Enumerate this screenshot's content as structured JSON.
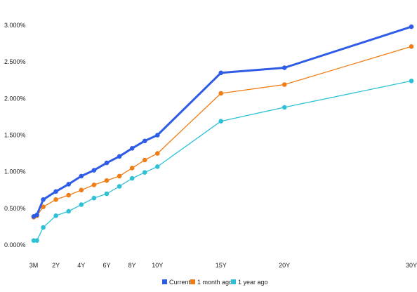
{
  "chart_data": {
    "type": "line",
    "title": "",
    "xlabel": "",
    "ylabel": "",
    "grid": false,
    "legend_position": "bottom",
    "x_ticks": [
      {
        "label": "3M",
        "value": 0.25
      },
      {
        "label": "2Y",
        "value": 2
      },
      {
        "label": "4Y",
        "value": 4
      },
      {
        "label": "6Y",
        "value": 6
      },
      {
        "label": "8Y",
        "value": 8
      },
      {
        "label": "10Y",
        "value": 10
      },
      {
        "label": "15Y",
        "value": 15
      },
      {
        "label": "20Y",
        "value": 20
      },
      {
        "label": "30Y",
        "value": 30
      }
    ],
    "y_ticks": [
      "0.000%",
      "0.500%",
      "1.000%",
      "1.500%",
      "2.000%",
      "2.500%",
      "3.000%"
    ],
    "y_tick_values": [
      0,
      0.5,
      1.0,
      1.5,
      2.0,
      2.5,
      3.0
    ],
    "xlim": [
      0.25,
      30
    ],
    "ylim": [
      0,
      3.0
    ],
    "x": [
      0.25,
      0.5,
      1,
      2,
      3,
      4,
      5,
      6,
      7,
      8,
      9,
      10,
      15,
      20,
      30
    ],
    "series": [
      {
        "name": "Current",
        "color": "#2f5ce6",
        "stroke_width": 3,
        "values": [
          0.39,
          0.41,
          0.62,
          0.73,
          0.83,
          0.94,
          1.02,
          1.12,
          1.21,
          1.32,
          1.42,
          1.5,
          2.35,
          2.42,
          2.98
        ]
      },
      {
        "name": "1 month ago",
        "color": "#f07c14",
        "stroke_width": 1.3,
        "values": [
          0.38,
          0.4,
          0.52,
          0.62,
          0.68,
          0.75,
          0.82,
          0.88,
          0.94,
          1.05,
          1.16,
          1.25,
          2.07,
          2.19,
          2.71
        ]
      },
      {
        "name": "1 year ago",
        "color": "#2ec1d6",
        "stroke_width": 1.3,
        "values": [
          0.06,
          0.06,
          0.24,
          0.4,
          0.46,
          0.55,
          0.64,
          0.7,
          0.8,
          0.91,
          0.99,
          1.07,
          1.69,
          1.88,
          2.24
        ]
      }
    ]
  }
}
